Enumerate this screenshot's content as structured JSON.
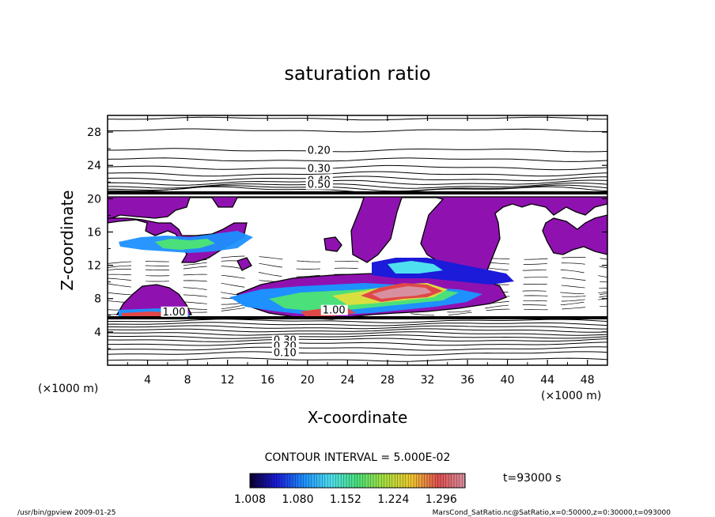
{
  "chart_data": {
    "type": "contour",
    "title": "saturation ratio",
    "xlabel": "X-coordinate",
    "ylabel": "Z-coordinate",
    "x_unit": "(×1000 m)",
    "y_unit": "(×1000 m)",
    "xlim": [
      0,
      50
    ],
    "ylim": [
      0,
      30
    ],
    "x_ticks": [
      "4",
      "8",
      "12",
      "16",
      "20",
      "24",
      "28",
      "32",
      "36",
      "40",
      "44",
      "48"
    ],
    "y_ticks": [
      "4",
      "8",
      "12",
      "16",
      "20",
      "24",
      "28"
    ],
    "contour_interval_text": "CONTOUR INTERVAL = 5.000E-02",
    "contour_labels": [
      {
        "text": "0.20",
        "x": 20,
        "y": 25.4
      },
      {
        "text": "0.30",
        "x": 20,
        "y": 23.2
      },
      {
        "text": "0.40",
        "x": 20,
        "y": 21.8
      },
      {
        "text": "0.50",
        "x": 20,
        "y": 21.3
      },
      {
        "text": "0.30",
        "x": 16.6,
        "y": 2.6
      },
      {
        "text": "0.20",
        "x": 16.6,
        "y": 1.9
      },
      {
        "text": "0.10",
        "x": 16.6,
        "y": 1.1
      },
      {
        "text": "1.00",
        "x": 21.5,
        "y": 6.2
      },
      {
        "text": "1.00",
        "x": 5.5,
        "y": 6.0
      }
    ],
    "colorbar": {
      "tick_labels": [
        "1.008",
        "1.080",
        "1.152",
        "1.224",
        "1.296"
      ],
      "range": [
        1.008,
        1.332
      ]
    },
    "time_text": "t=93000 s",
    "colors": {
      "saturated": "#8f12b0",
      "colormap": [
        "#0a0030",
        "#1b1bd9",
        "#1e90ff",
        "#4fe0f0",
        "#4be07a",
        "#a8e040",
        "#f0c830",
        "#e05050",
        "#d890a0"
      ]
    }
  },
  "footer": {
    "left": "/usr/bin/gpview   2009-01-25",
    "right": "MarsCond_SatRatio.nc@SatRatio,x=0:50000,z=0:30000,t=093000"
  }
}
